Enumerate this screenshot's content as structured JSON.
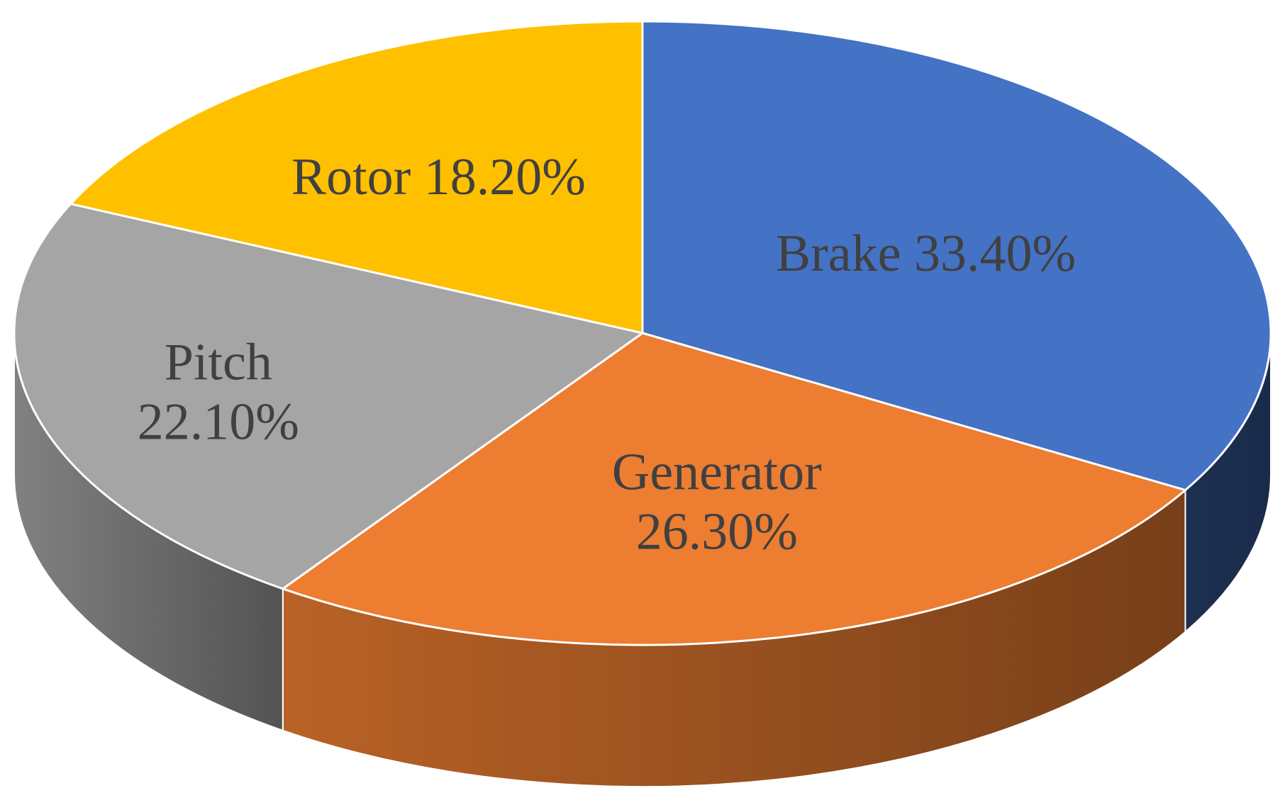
{
  "chart_data": {
    "type": "pie",
    "style": "3d",
    "title": "",
    "slices": [
      {
        "label": "Brake",
        "value": 33.4,
        "value_text": "33.40%",
        "lines": [
          "Brake 33.40%"
        ],
        "color": "#4472C4",
        "side_color": "#1B2D50"
      },
      {
        "label": "Generator",
        "value": 26.3,
        "value_text": "26.30%",
        "lines": [
          "Generator",
          "26.30%"
        ],
        "color": "#ED7D31",
        "side_color": "#9A4F1E"
      },
      {
        "label": "Pitch",
        "value": 22.1,
        "value_text": "22.10%",
        "lines": [
          "Pitch",
          "22.10%"
        ],
        "color": "#A5A5A5",
        "side_color": "#8E8E8E"
      },
      {
        "label": "Rotor",
        "value": 18.2,
        "value_text": "18.20%",
        "lines": [
          "Rotor 18.20%"
        ],
        "color": "#FFC000",
        "side_color": "#A67C00"
      }
    ],
    "label_color": "#404040",
    "legend": "none"
  }
}
